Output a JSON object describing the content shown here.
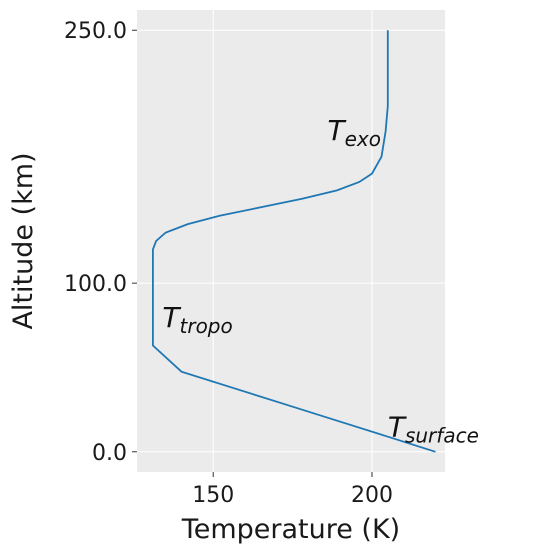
{
  "chart_data": {
    "type": "line",
    "title": "",
    "xlabel": "Temperature (K)",
    "ylabel": "Altitude (km)",
    "xlim": [
      126,
      223
    ],
    "ylim": [
      -12,
      262
    ],
    "xticks": [
      150,
      200
    ],
    "xtick_labels": [
      "150",
      "200"
    ],
    "yticks": [
      0,
      100,
      250
    ],
    "ytick_labels": [
      "0.0",
      "100.0",
      "250.0"
    ],
    "grid": true,
    "series": [
      {
        "color": "#1f77b4",
        "x": [
          220,
          204,
          188,
          172,
          156,
          140,
          131,
          131,
          131,
          131,
          132,
          135,
          142,
          152,
          165,
          178,
          189,
          196,
          200,
          203,
          204.3,
          205,
          205,
          205
        ],
        "y": [
          0,
          9.5,
          19,
          28.5,
          38,
          47.5,
          63,
          75,
          90,
          120,
          125,
          130,
          135,
          140,
          145,
          150,
          155,
          160,
          165,
          175,
          190,
          205,
          225,
          250
        ]
      }
    ],
    "annotations": [
      {
        "base": "T",
        "sub": "exo",
        "x": 186,
        "y": 185
      },
      {
        "base": "T",
        "sub": "tropo",
        "x": 134,
        "y": 74
      },
      {
        "base": "T",
        "sub": "surface",
        "x": 205,
        "y": 9
      }
    ]
  }
}
